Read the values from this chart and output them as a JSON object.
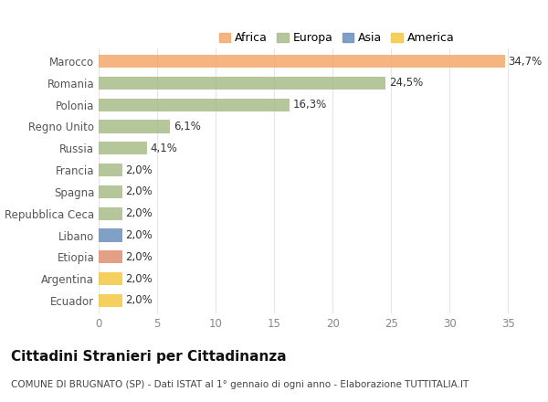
{
  "categories": [
    "Marocco",
    "Romania",
    "Polonia",
    "Regno Unito",
    "Russia",
    "Francia",
    "Spagna",
    "Repubblica Ceca",
    "Libano",
    "Etiopia",
    "Argentina",
    "Ecuador"
  ],
  "values": [
    34.7,
    24.5,
    16.3,
    6.1,
    4.1,
    2.0,
    2.0,
    2.0,
    2.0,
    2.0,
    2.0,
    2.0
  ],
  "labels": [
    "34,7%",
    "24,5%",
    "16,3%",
    "6,1%",
    "4,1%",
    "2,0%",
    "2,0%",
    "2,0%",
    "2,0%",
    "2,0%",
    "2,0%",
    "2,0%"
  ],
  "colors": [
    "#F4A86C",
    "#A8BC8A",
    "#A8BC8A",
    "#A8BC8A",
    "#A8BC8A",
    "#A8BC8A",
    "#A8BC8A",
    "#A8BC8A",
    "#6B8FBF",
    "#E09070",
    "#F5C842",
    "#F5C842"
  ],
  "legend_items": [
    {
      "label": "Africa",
      "color": "#F4A86C"
    },
    {
      "label": "Europa",
      "color": "#A8BC8A"
    },
    {
      "label": "Asia",
      "color": "#6B8FBF"
    },
    {
      "label": "America",
      "color": "#F5C842"
    }
  ],
  "xlim": [
    0,
    37
  ],
  "xticks": [
    0,
    5,
    10,
    15,
    20,
    25,
    30,
    35
  ],
  "title": "Cittadini Stranieri per Cittadinanza",
  "subtitle": "COMUNE DI BRUGNATO (SP) - Dati ISTAT al 1° gennaio di ogni anno - Elaborazione TUTTITALIA.IT",
  "background_color": "#ffffff",
  "grid_color": "#e5e5e5",
  "bar_height": 0.6,
  "label_fontsize": 8.5,
  "tick_fontsize": 8.5,
  "title_fontsize": 11,
  "subtitle_fontsize": 7.5
}
